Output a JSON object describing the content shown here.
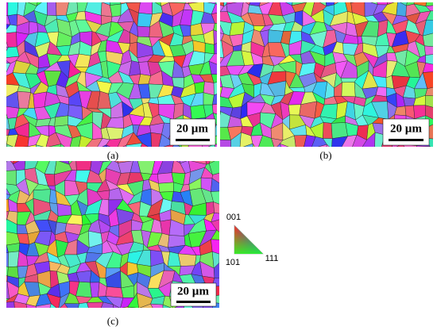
{
  "panels": [
    {
      "scale_bar": "20 µm",
      "caption": "(a)"
    },
    {
      "scale_bar": "20 µm",
      "caption": "(b)"
    },
    {
      "scale_bar": "20 µm",
      "caption": "(c)"
    }
  ],
  "legend": {
    "labels": [
      "001",
      "101",
      "111"
    ]
  }
}
